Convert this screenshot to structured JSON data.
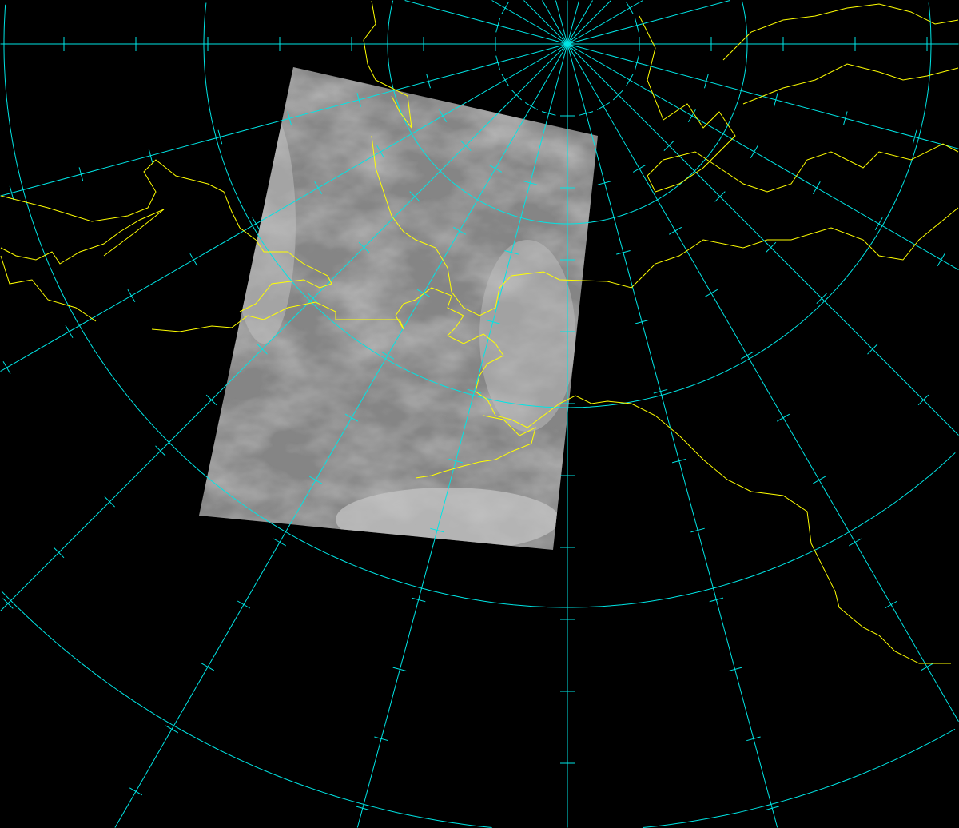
{
  "map": {
    "projection": "polar-stereographic",
    "background_color": "#000000",
    "graticule_color": "#00e5e5",
    "coastline_color": "#ffff00",
    "imagery": "satellite-infrared-grayscale",
    "imagery_base_color": "#8a8a8a"
  }
}
